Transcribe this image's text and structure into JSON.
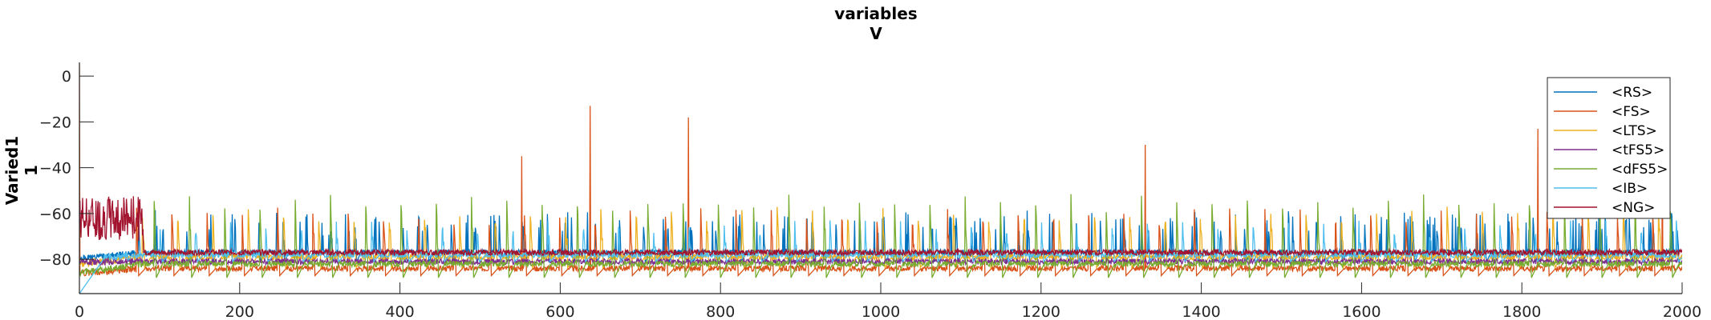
{
  "chart_data": {
    "type": "line",
    "title": [
      "variables",
      "V"
    ],
    "ylabel": [
      "Varied1",
      "1"
    ],
    "xlabel": "",
    "xlim": [
      0,
      2000
    ],
    "ylim": [
      -95,
      6
    ],
    "xticks": [
      0,
      200,
      400,
      600,
      800,
      1000,
      1200,
      1400,
      1600,
      1800,
      2000
    ],
    "yticks": [
      -80,
      -60,
      -40,
      -20,
      0
    ],
    "grid": false,
    "legend_position": "top-right",
    "series": [
      {
        "name": "<RS>",
        "color": "#0072BD",
        "baseline": -77,
        "rest": -80,
        "spike_interval": 30,
        "spike_amp": 14,
        "burst": true,
        "seed": 1
      },
      {
        "name": "<FS>",
        "color": "#D95319",
        "baseline": -84,
        "rest": -86,
        "spike_interval": 44,
        "spike_amp": 22,
        "burst": false,
        "seed": 2,
        "peaks": [
          [
            552,
            -35
          ],
          [
            637,
            -13
          ],
          [
            760,
            -18
          ],
          [
            1330,
            -30
          ],
          [
            1820,
            -23
          ],
          [
            1975,
            -35
          ]
        ]
      },
      {
        "name": "<LTS>",
        "color": "#EDB120",
        "baseline": -79,
        "rest": -82,
        "spike_interval": 44,
        "spike_amp": 18,
        "burst": false,
        "seed": 3
      },
      {
        "name": "<tFS5>",
        "color": "#7E2F8E",
        "baseline": -81,
        "rest": -81,
        "spike_interval": 60,
        "spike_amp": 2,
        "burst": false,
        "seed": 4
      },
      {
        "name": "<dFS5>",
        "color": "#77AC30",
        "baseline": -82,
        "rest": -86,
        "spike_interval": 44,
        "spike_amp": 30,
        "burst": false,
        "seed": 5
      },
      {
        "name": "<IB>",
        "color": "#4DBEEE",
        "baseline": -78,
        "rest": -80,
        "spike_interval": 44,
        "spike_amp": 12,
        "burst": false,
        "seed": 6
      },
      {
        "name": "<NG>",
        "color": "#A2142F",
        "baseline": -77,
        "rest": -78,
        "spike_interval": 80,
        "spike_amp": 2,
        "burst": false,
        "seed": 7
      }
    ]
  }
}
